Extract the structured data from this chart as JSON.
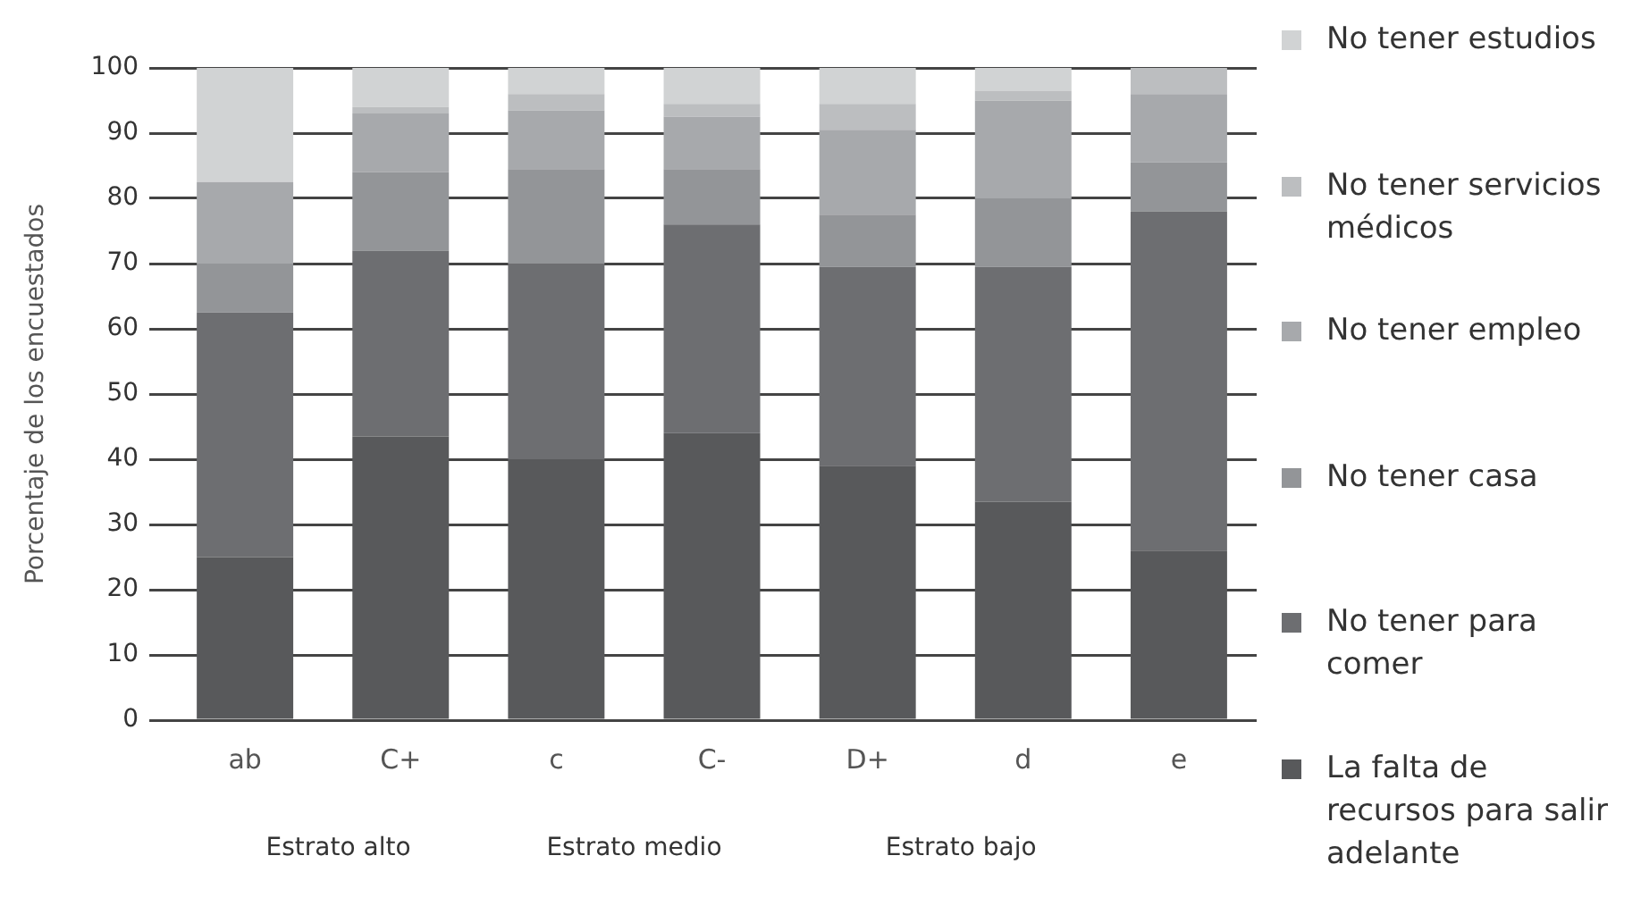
{
  "chart_data": {
    "type": "bar",
    "stacked": true,
    "ylabel": "Porcentaje de los encuestados",
    "categories": [
      "ab",
      "C+",
      "c",
      "C-",
      "D+",
      "d",
      "e"
    ],
    "series": [
      {
        "name": "La falta de recursos para salir adelante",
        "color": "#58595b",
        "values": [
          25,
          43.5,
          40,
          44,
          39,
          33.5,
          26
        ]
      },
      {
        "name": "No tener para comer",
        "color": "#6d6e71",
        "values": [
          37.5,
          28.5,
          30,
          32,
          30.5,
          36,
          52
        ]
      },
      {
        "name": "No tener casa",
        "color": "#939598",
        "values": [
          7.5,
          12,
          14.5,
          8.5,
          8,
          10.5,
          7.5
        ]
      },
      {
        "name": "No tener empleo",
        "color": "#a7a9ac",
        "values": [
          12.5,
          9,
          9,
          8,
          13,
          15,
          10.5
        ]
      },
      {
        "name": "No tener servicios médicos",
        "color": "#bcbec0",
        "values": [
          0,
          1,
          2.5,
          2,
          4,
          1.5,
          4
        ]
      },
      {
        "name": "No tener estudios",
        "color": "#d1d3d4",
        "values": [
          17.5,
          6,
          4,
          5.5,
          5.5,
          3.5,
          0
        ]
      }
    ],
    "ylim": [
      0,
      100
    ],
    "yticks": [
      0,
      10,
      20,
      30,
      40,
      50,
      60,
      70,
      80,
      90,
      100
    ],
    "grid": "y",
    "legend": "right",
    "annotations": [
      "Estrato alto",
      "Estrato medio",
      "Estrato bajo"
    ]
  }
}
